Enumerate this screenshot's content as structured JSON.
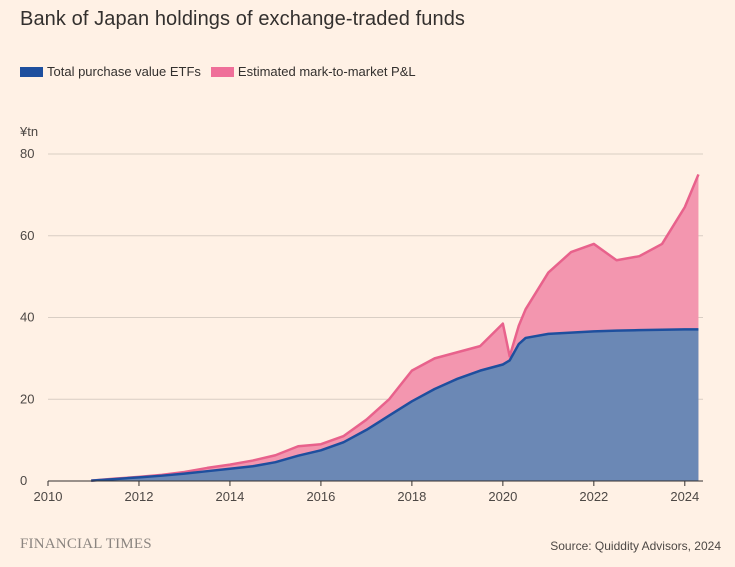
{
  "title": "Bank of Japan holdings of exchange-traded funds",
  "unit_label": "¥tn",
  "footer": {
    "brand": "FINANCIAL TIMES",
    "source": "Source: Quiddity Advisors, 2024"
  },
  "colors": {
    "background": "#fff1e5",
    "purchase_fill": "#6b88b5",
    "purchase_line": "#1e4f9e",
    "pnl_fill": "#f396af",
    "pnl_line": "#e8628c",
    "legend_purchase": "#1e4f9e",
    "legend_pnl": "#ef6f99"
  },
  "chart_data": {
    "type": "area",
    "title": "Bank of Japan holdings of exchange-traded funds",
    "ylabel": "¥tn",
    "xlabel": "",
    "xlim": [
      2010,
      2024.4
    ],
    "ylim": [
      0,
      80
    ],
    "yticks": [
      0,
      20,
      40,
      60,
      80
    ],
    "xticks": [
      2010,
      2012,
      2014,
      2016,
      2018,
      2020,
      2022,
      2024
    ],
    "grid": true,
    "legend_position": "top-left",
    "legend": [
      "Total purchase value ETFs",
      "Estimated mark-to-market P&L"
    ],
    "x": [
      2010.95,
      2011.5,
      2012.0,
      2012.5,
      2013.0,
      2013.5,
      2014.0,
      2014.5,
      2015.0,
      2015.5,
      2016.0,
      2016.5,
      2017.0,
      2017.5,
      2018.0,
      2018.5,
      2019.0,
      2019.5,
      2020.0,
      2020.15,
      2020.35,
      2020.5,
      2021.0,
      2021.5,
      2022.0,
      2022.5,
      2023.0,
      2023.5,
      2024.0,
      2024.3
    ],
    "series": [
      {
        "name": "Total purchase value ETFs",
        "values": [
          0.1,
          0.5,
          0.9,
          1.3,
          1.8,
          2.4,
          3.0,
          3.6,
          4.6,
          6.2,
          7.5,
          9.5,
          12.5,
          16.0,
          19.5,
          22.5,
          25.0,
          27.0,
          28.5,
          29.5,
          33.5,
          35.0,
          36.0,
          36.3,
          36.6,
          36.8,
          36.9,
          37.0,
          37.1,
          37.1
        ]
      },
      {
        "name": "Estimated mark-to-market P&L",
        "values": [
          0.1,
          0.6,
          1.0,
          1.5,
          2.2,
          3.2,
          4.0,
          5.0,
          6.3,
          8.5,
          9.0,
          11.0,
          15.0,
          20.0,
          27.0,
          30.0,
          31.5,
          33.0,
          38.5,
          30.5,
          38.0,
          42.0,
          51.0,
          56.0,
          58.0,
          54.0,
          55.0,
          58.0,
          67.0,
          75.0
        ]
      }
    ]
  }
}
